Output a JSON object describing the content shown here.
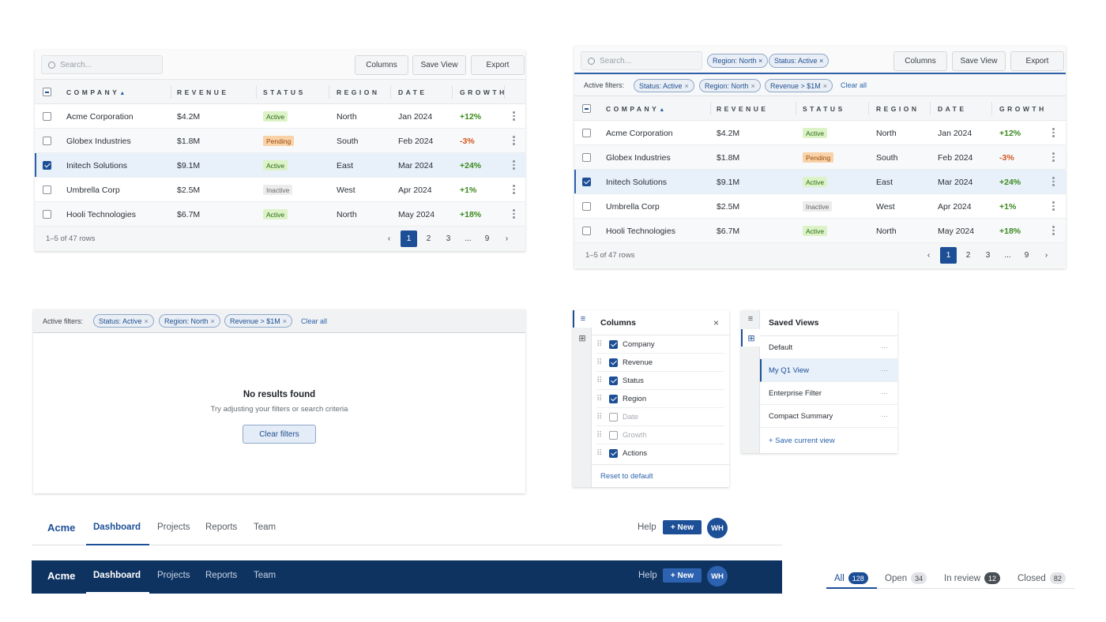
{
  "table": {
    "search_placeholder": "Search...",
    "buttons": {
      "columns": "Columns",
      "save_view": "Save View",
      "export": "Export"
    },
    "headers": [
      "COMPANY",
      "REVENUE",
      "STATUS",
      "REGION",
      "DATE",
      "GROWTH"
    ],
    "sort_arrow": "▲",
    "rows": [
      {
        "company": "Acme Corporation",
        "revenue": "$4.2M",
        "status": "Active",
        "region": "North",
        "date": "Jan 2024",
        "growth": "+12%",
        "selected": false
      },
      {
        "company": "Globex Industries",
        "revenue": "$1.8M",
        "status": "Pending",
        "region": "South",
        "date": "Feb 2024",
        "growth": "-3%",
        "selected": false
      },
      {
        "company": "Initech Solutions",
        "revenue": "$9.1M",
        "status": "Active",
        "region": "East",
        "date": "Mar 2024",
        "growth": "+24%",
        "selected": true
      },
      {
        "company": "Umbrella Corp",
        "revenue": "$2.5M",
        "status": "Inactive",
        "region": "West",
        "date": "Apr 2024",
        "growth": "+1%",
        "selected": false
      },
      {
        "company": "Hooli Technologies",
        "revenue": "$6.7M",
        "status": "Active",
        "region": "North",
        "date": "May 2024",
        "growth": "+18%",
        "selected": false
      }
    ],
    "footer_info": "1–5 of 47 rows",
    "pagination": [
      "‹",
      "1",
      "2",
      "3",
      "...",
      "9",
      "›"
    ]
  },
  "toolbar_chips": [
    "Region: North ×",
    "Status: Active ×"
  ],
  "filters": {
    "label": "Active filters:",
    "chips": [
      "Status: Active",
      "Region: North",
      "Revenue > $1M"
    ],
    "chip_remove": "×",
    "clear_all": "Clear all"
  },
  "empty_state": {
    "title": "No results found",
    "subtitle": "Try adjusting your filters or search criteria",
    "button": "Clear filters"
  },
  "columns_panel": {
    "title": "Columns",
    "close": "×",
    "items": [
      {
        "label": "Company",
        "checked": true
      },
      {
        "label": "Revenue",
        "checked": true
      },
      {
        "label": "Status",
        "checked": true
      },
      {
        "label": "Region",
        "checked": true
      },
      {
        "label": "Date",
        "checked": false
      },
      {
        "label": "Growth",
        "checked": false
      },
      {
        "label": "Actions",
        "checked": true
      }
    ],
    "reset": "Reset to default"
  },
  "views_panel": {
    "title": "Saved Views",
    "items": [
      {
        "label": "Default",
        "selected": false
      },
      {
        "label": "My Q1 View",
        "selected": true
      },
      {
        "label": "Enterprise Filter",
        "selected": false
      },
      {
        "label": "Compact Summary",
        "selected": false
      }
    ],
    "more": "···",
    "save": "+ Save current view"
  },
  "rail_icons": {
    "list": "≡",
    "grid": "⊞"
  },
  "nav": {
    "brand": "Acme",
    "links": [
      "Dashboard",
      "Projects",
      "Reports",
      "Team"
    ],
    "help": "Help",
    "new_button": "+ New",
    "avatar": "WH"
  },
  "tabs": [
    {
      "label": "All",
      "count": "128"
    },
    {
      "label": "Open",
      "count": "34"
    },
    {
      "label": "In review",
      "count": "12"
    },
    {
      "label": "Closed",
      "count": "82"
    }
  ],
  "colors": {
    "accent": "#1d4f97",
    "nav_dark": "#0f3361",
    "positive": "#3c8a1e",
    "negative": "#d2571c"
  }
}
